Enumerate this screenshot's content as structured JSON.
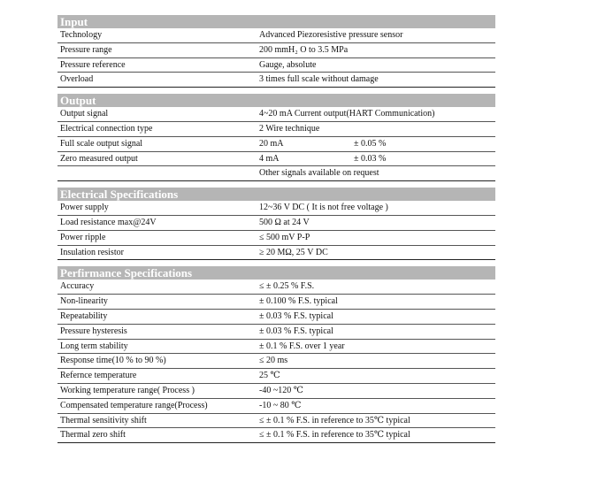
{
  "sections": [
    {
      "title": "Input",
      "rows": [
        {
          "label": "Technology",
          "value": "Advanced Piezoresistive pressure sensor"
        },
        {
          "label": "Pressure range",
          "value": "200 mmH₂  O to 3.5 MPa"
        },
        {
          "label": "Pressure reference",
          "value": "Gauge, absolute"
        },
        {
          "label": "Overload",
          "value": "3 times full scale without damage"
        }
      ]
    },
    {
      "title": "Output",
      "rows": [
        {
          "label": "Output signal",
          "value": "4~20 mA Current output(HART Communication)"
        },
        {
          "label": "Electrical connection type",
          "value": "2 Wire technique"
        },
        {
          "label": "Full scale output signal",
          "value": "20 mA",
          "tolerance": "± 0.05 %"
        },
        {
          "label": "Zero measured output",
          "value": "4 mA",
          "tolerance": "± 0.03 %"
        },
        {
          "label": "",
          "value": "Other signals available on request"
        }
      ]
    },
    {
      "title": "Electrical Specifications",
      "rows": [
        {
          "label": "Power supply",
          "value": "12~36 V DC ( It is not free voltage )"
        },
        {
          "label": "Load resistance max@24V",
          "value": "500 Ω at 24 V"
        },
        {
          "label": "Power ripple",
          "value": "≤ 500 mV P-P"
        },
        {
          "label": "Insulation resistor",
          "value": "≥ 20 MΩ, 25 V DC"
        }
      ]
    },
    {
      "title": "Perfirmance Specifications",
      "rows": [
        {
          "label": "Accuracy",
          "value": "≤ ± 0.25 % F.S."
        },
        {
          "label": "Non-linearity",
          "value": "± 0.100 % F.S. typical"
        },
        {
          "label": "Repeatability",
          "value": "± 0.03 % F.S. typical"
        },
        {
          "label": "Pressure hysteresis",
          "value": "± 0.03 % F.S. typical"
        },
        {
          "label": "Long term stability",
          "value": "± 0.1 % F.S. over 1 year"
        },
        {
          "label": "Response time(10 % to 90 %)",
          "value": "≤ 20 ms"
        },
        {
          "label": "Refernce temperature",
          "value": "25 ℃"
        },
        {
          "label": "Working temperature range( Process )",
          "value": "-40 ~120 ℃"
        },
        {
          "label": "Compensated temperature range(Process)",
          "value": "-10 ~ 80 ℃"
        },
        {
          "label": "Thermal sensitivity shift",
          "value": "≤ ± 0.1 % F.S. in reference to 35℃ typical"
        },
        {
          "label": "Thermal zero shift",
          "value": "≤ ± 0.1 % F.S. in reference to 35℃ typical"
        }
      ]
    }
  ]
}
